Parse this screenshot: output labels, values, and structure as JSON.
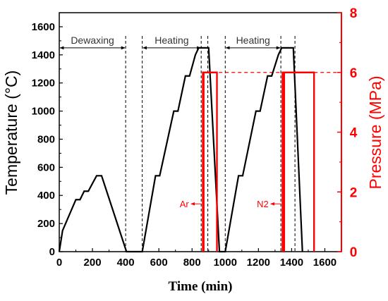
{
  "chart_data": {
    "type": "line",
    "title": "",
    "xlabel": "Time (min)",
    "ylabel_left": "Temperature (°C)",
    "ylabel_right": "Pressure (MPa)",
    "xlim": [
      0,
      1700
    ],
    "ylim_left": [
      0,
      1700
    ],
    "ylim_right": [
      0,
      8
    ],
    "x_ticks": [
      0,
      200,
      400,
      600,
      800,
      1000,
      1200,
      1400,
      1600
    ],
    "y_ticks_left": [
      0,
      200,
      400,
      600,
      800,
      1000,
      1200,
      1400,
      1600
    ],
    "y_ticks_right": [
      0,
      2,
      4,
      6,
      8
    ],
    "grid": false,
    "colors": {
      "temperature": "#000000",
      "pressure": "#ff0000"
    },
    "series": [
      {
        "axis": "left",
        "x": [
          0,
          20,
          100,
          125,
          150,
          175,
          225,
          255,
          405,
          500,
          580,
          605,
          690,
          715,
          760,
          785,
          820,
          840,
          860,
          900,
          965,
          1000,
          1080,
          1105,
          1185,
          1210,
          1255,
          1280,
          1320,
          1340,
          1355,
          1410,
          1465
        ],
        "y": [
          0,
          150,
          370,
          370,
          430,
          430,
          540,
          540,
          0,
          0,
          540,
          540,
          1000,
          1000,
          1250,
          1250,
          1400,
          1450,
          1450,
          1450,
          0,
          0,
          540,
          540,
          1000,
          1000,
          1250,
          1250,
          1400,
          1450,
          1450,
          1450,
          0
        ]
      },
      {
        "axis": "right",
        "x": [
          865,
          865,
          870,
          870,
          870,
          880,
          950,
          950
        ],
        "y": [
          0,
          6,
          6,
          0,
          6,
          6,
          6,
          0
        ]
      },
      {
        "axis": "right",
        "x": [
          1345,
          1345,
          1355,
          1355,
          1355,
          1370,
          1535,
          1535
        ],
        "y": [
          0,
          6,
          6,
          0,
          6,
          6,
          6,
          0
        ]
      }
    ],
    "reference_line": {
      "axis": "right",
      "y": 6,
      "x_from": 885,
      "x_to": 1700,
      "style": "dashed"
    },
    "vlines": [
      400,
      500,
      855,
      895,
      1000,
      1335,
      1420
    ],
    "annotations": [
      {
        "text": "Dewaxing",
        "x_from": 0,
        "x_to": 400,
        "y": 1450,
        "arrow": "both"
      },
      {
        "text": "Heating",
        "x_from": 500,
        "x_to": 855,
        "y": 1450,
        "arrow": "both"
      },
      {
        "text": "Heating",
        "x_from": 1000,
        "x_to": 1335,
        "y": 1450,
        "arrow": "both"
      },
      {
        "text": "Ar",
        "x": 866,
        "y_right": 1.6,
        "arrow": "left"
      },
      {
        "text": "N2",
        "x": 1346,
        "y_right": 1.6,
        "arrow": "left"
      }
    ]
  }
}
